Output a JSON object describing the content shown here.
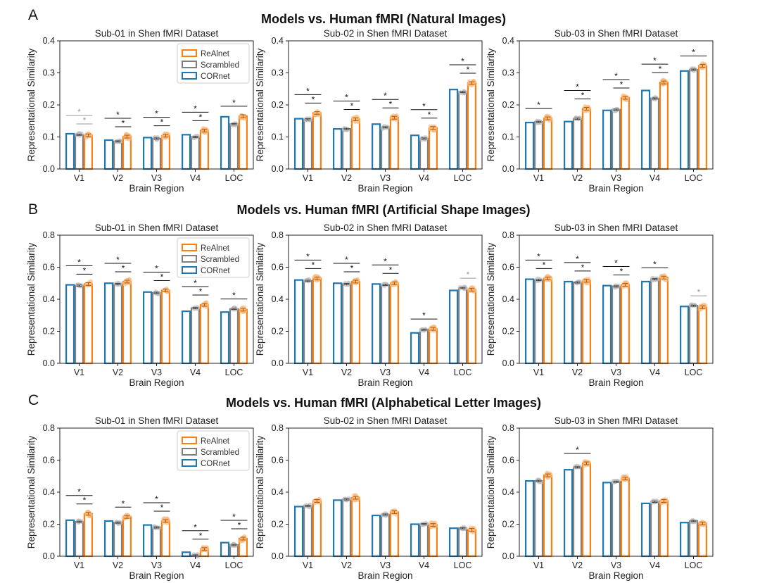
{
  "colors": {
    "realnet": "#ff7f0e",
    "scrambled": "#7f7f7f",
    "cornet": "#1f77b4",
    "realnet_dots": "#f7b97c",
    "sig_grey": "#9a9a9a"
  },
  "panel_letters": [
    "A",
    "B",
    "C"
  ],
  "row_titles": [
    "Models vs. Human fMRI (Natural Images)",
    "Models vs. Human fMRI (Artificial Shape Images)",
    "Models vs. Human fMRI (Alphabetical Letter Images)"
  ],
  "legend": [
    "ReAlnet",
    "Scrambled",
    "CORnet"
  ],
  "star_symbol": "*",
  "chart_data": [
    {
      "type": "bar",
      "row": 0,
      "col": 0,
      "title": "Sub-01 in Shen fMRI Dataset",
      "xlabel": "Brain Region",
      "ylabel": "Representational Similarity",
      "categories": [
        "V1",
        "V2",
        "V3",
        "V4",
        "LOC"
      ],
      "ylim": [
        0,
        0.4
      ],
      "yticks": [
        "0.0",
        "0.1",
        "0.2",
        "0.3",
        "0.4"
      ],
      "ystep": 0.1,
      "legend": true,
      "series": [
        {
          "name": "CORnet",
          "values": [
            0.11,
            0.09,
            0.098,
            0.107,
            0.163
          ]
        },
        {
          "name": "Scrambled",
          "values": [
            0.107,
            0.086,
            0.095,
            0.1,
            0.14
          ]
        },
        {
          "name": "ReAlnet",
          "values": [
            0.105,
            0.101,
            0.104,
            0.12,
            0.165
          ]
        }
      ],
      "significance": [
        [
          true,
          true,
          true,
          true,
          true
        ],
        [
          true,
          true,
          true,
          true,
          false
        ]
      ],
      "significance_grey": [
        [
          true,
          false,
          false,
          false,
          false
        ],
        [
          true,
          false,
          false,
          false,
          false
        ]
      ]
    },
    {
      "type": "bar",
      "row": 0,
      "col": 1,
      "title": "Sub-02 in Shen fMRI Dataset",
      "xlabel": "Brain Region",
      "ylabel": "Representational Similarity",
      "categories": [
        "V1",
        "V2",
        "V3",
        "V4",
        "LOC"
      ],
      "ylim": [
        0,
        0.4
      ],
      "yticks": [
        "0.0",
        "0.1",
        "0.2",
        "0.3",
        "0.4"
      ],
      "ystep": 0.1,
      "legend": false,
      "series": [
        {
          "name": "CORnet",
          "values": [
            0.157,
            0.125,
            0.14,
            0.105,
            0.248
          ]
        },
        {
          "name": "Scrambled",
          "values": [
            0.155,
            0.125,
            0.13,
            0.095,
            0.24
          ]
        },
        {
          "name": "ReAlnet",
          "values": [
            0.175,
            0.155,
            0.16,
            0.128,
            0.268
          ]
        }
      ],
      "significance": [
        [
          true,
          true,
          true,
          true,
          true
        ],
        [
          true,
          true,
          true,
          true,
          true
        ]
      ],
      "significance_grey": [
        [
          false,
          false,
          false,
          false,
          false
        ],
        [
          false,
          false,
          false,
          false,
          false
        ]
      ]
    },
    {
      "type": "bar",
      "row": 0,
      "col": 2,
      "title": "Sub-03 in Shen fMRI Dataset",
      "xlabel": "Brain Region",
      "ylabel": "Representational Similarity",
      "categories": [
        "V1",
        "V2",
        "V3",
        "V4",
        "LOC"
      ],
      "ylim": [
        0,
        0.4
      ],
      "yticks": [
        "0.0",
        "0.1",
        "0.2",
        "0.3",
        "0.4"
      ],
      "ystep": 0.1,
      "legend": false,
      "series": [
        {
          "name": "CORnet",
          "values": [
            0.145,
            0.148,
            0.183,
            0.245,
            0.306
          ]
        },
        {
          "name": "Scrambled",
          "values": [
            0.147,
            0.157,
            0.185,
            0.22,
            0.31
          ]
        },
        {
          "name": "ReAlnet",
          "values": [
            0.158,
            0.188,
            0.222,
            0.27,
            0.322
          ]
        }
      ],
      "significance": [
        [
          true,
          true,
          true,
          true,
          true
        ],
        [
          false,
          true,
          true,
          true,
          false
        ]
      ],
      "significance_grey": [
        [
          false,
          false,
          false,
          false,
          false
        ],
        [
          false,
          false,
          false,
          false,
          false
        ]
      ]
    },
    {
      "type": "bar",
      "row": 1,
      "col": 0,
      "title": "Sub-01 in Shen fMRI Dataset",
      "xlabel": "Brain Region",
      "ylabel": "Representational Similarity",
      "categories": [
        "V1",
        "V2",
        "V3",
        "V4",
        "LOC"
      ],
      "ylim": [
        0,
        0.8
      ],
      "yticks": [
        "0.0",
        "0.2",
        "0.4",
        "0.6",
        "0.8"
      ],
      "ystep": 0.2,
      "legend": true,
      "series": [
        {
          "name": "CORnet",
          "values": [
            0.49,
            0.5,
            0.445,
            0.325,
            0.32
          ]
        },
        {
          "name": "Scrambled",
          "values": [
            0.485,
            0.495,
            0.44,
            0.345,
            0.34
          ]
        },
        {
          "name": "ReAlnet",
          "values": [
            0.495,
            0.51,
            0.455,
            0.365,
            0.335
          ]
        }
      ],
      "significance": [
        [
          true,
          true,
          true,
          true,
          true
        ],
        [
          true,
          true,
          true,
          true,
          false
        ]
      ],
      "significance_grey": [
        [
          false,
          false,
          false,
          false,
          false
        ],
        [
          false,
          false,
          false,
          false,
          false
        ]
      ]
    },
    {
      "type": "bar",
      "row": 1,
      "col": 1,
      "title": "Sub-02 in Shen fMRI Dataset",
      "xlabel": "Brain Region",
      "ylabel": "Representational Similarity",
      "categories": [
        "V1",
        "V2",
        "V3",
        "V4",
        "LOC"
      ],
      "ylim": [
        0,
        0.8
      ],
      "yticks": [
        "0.0",
        "0.2",
        "0.4",
        "0.6",
        "0.8"
      ],
      "ystep": 0.2,
      "legend": false,
      "series": [
        {
          "name": "CORnet",
          "values": [
            0.52,
            0.5,
            0.495,
            0.19,
            0.455
          ]
        },
        {
          "name": "Scrambled",
          "values": [
            0.515,
            0.495,
            0.49,
            0.21,
            0.47
          ]
        },
        {
          "name": "ReAlnet",
          "values": [
            0.53,
            0.51,
            0.5,
            0.215,
            0.46
          ]
        }
      ],
      "significance": [
        [
          true,
          true,
          true,
          true,
          false
        ],
        [
          true,
          true,
          true,
          false,
          true
        ]
      ],
      "significance_grey": [
        [
          false,
          false,
          false,
          false,
          false
        ],
        [
          false,
          false,
          false,
          false,
          true
        ]
      ]
    },
    {
      "type": "bar",
      "row": 1,
      "col": 2,
      "title": "Sub-03 in Shen fMRI Dataset",
      "xlabel": "Brain Region",
      "ylabel": "Representational Similarity",
      "categories": [
        "V1",
        "V2",
        "V3",
        "V4",
        "LOC"
      ],
      "ylim": [
        0,
        0.8
      ],
      "yticks": [
        "0.0",
        "0.2",
        "0.4",
        "0.6",
        "0.8"
      ],
      "ystep": 0.2,
      "legend": false,
      "series": [
        {
          "name": "CORnet",
          "values": [
            0.525,
            0.51,
            0.485,
            0.51,
            0.355
          ]
        },
        {
          "name": "Scrambled",
          "values": [
            0.52,
            0.505,
            0.48,
            0.525,
            0.36
          ]
        },
        {
          "name": "ReAlnet",
          "values": [
            0.53,
            0.515,
            0.49,
            0.535,
            0.35
          ]
        }
      ],
      "significance": [
        [
          true,
          true,
          true,
          true,
          false
        ],
        [
          true,
          true,
          true,
          false,
          true
        ]
      ],
      "significance_grey": [
        [
          false,
          false,
          false,
          false,
          false
        ],
        [
          false,
          false,
          false,
          false,
          true
        ]
      ]
    },
    {
      "type": "bar",
      "row": 2,
      "col": 0,
      "title": "Sub-01 in Shen fMRI Dataset",
      "xlabel": "Brain Region",
      "ylabel": "Representational Similarity",
      "categories": [
        "V1",
        "V2",
        "V3",
        "V4",
        "LOC"
      ],
      "ylim": [
        0,
        0.8
      ],
      "yticks": [
        "0.0",
        "0.2",
        "0.4",
        "0.6",
        "0.8"
      ],
      "ystep": 0.2,
      "legend": true,
      "series": [
        {
          "name": "CORnet",
          "values": [
            0.225,
            0.22,
            0.195,
            0.025,
            0.085
          ]
        },
        {
          "name": "Scrambled",
          "values": [
            0.215,
            0.21,
            0.18,
            0.005,
            0.07
          ]
        },
        {
          "name": "ReAlnet",
          "values": [
            0.265,
            0.245,
            0.22,
            0.045,
            0.11
          ]
        }
      ],
      "significance": [
        [
          true,
          false,
          true,
          true,
          true
        ],
        [
          true,
          true,
          true,
          true,
          true
        ]
      ],
      "significance_grey": [
        [
          false,
          false,
          false,
          false,
          false
        ],
        [
          false,
          false,
          false,
          false,
          false
        ]
      ]
    },
    {
      "type": "bar",
      "row": 2,
      "col": 1,
      "title": "Sub-02 in Shen fMRI Dataset",
      "xlabel": "Brain Region",
      "ylabel": "Representational Similarity",
      "categories": [
        "V1",
        "V2",
        "V3",
        "V4",
        "LOC"
      ],
      "ylim": [
        0,
        0.8
      ],
      "yticks": [
        "0.0",
        "0.2",
        "0.4",
        "0.6",
        "0.8"
      ],
      "ystep": 0.2,
      "legend": false,
      "series": [
        {
          "name": "CORnet",
          "values": [
            0.31,
            0.35,
            0.255,
            0.2,
            0.175
          ]
        },
        {
          "name": "Scrambled",
          "values": [
            0.315,
            0.355,
            0.26,
            0.2,
            0.175
          ]
        },
        {
          "name": "ReAlnet",
          "values": [
            0.345,
            0.365,
            0.275,
            0.195,
            0.165
          ]
        }
      ],
      "significance": [
        [
          false,
          false,
          false,
          false,
          false
        ],
        [
          false,
          false,
          false,
          false,
          false
        ]
      ],
      "significance_grey": [
        [
          false,
          false,
          false,
          false,
          false
        ],
        [
          false,
          false,
          false,
          false,
          false
        ]
      ]
    },
    {
      "type": "bar",
      "row": 2,
      "col": 2,
      "title": "Sub-03 in Shen fMRI Dataset",
      "xlabel": "Brain Region",
      "ylabel": "Representational Similarity",
      "categories": [
        "V1",
        "V2",
        "V3",
        "V4",
        "LOC"
      ],
      "ylim": [
        0,
        0.8
      ],
      "yticks": [
        "0.0",
        "0.2",
        "0.4",
        "0.6",
        "0.8"
      ],
      "ystep": 0.2,
      "legend": false,
      "series": [
        {
          "name": "CORnet",
          "values": [
            0.47,
            0.54,
            0.46,
            0.33,
            0.21
          ]
        },
        {
          "name": "Scrambled",
          "values": [
            0.47,
            0.555,
            0.465,
            0.34,
            0.22
          ]
        },
        {
          "name": "ReAlnet",
          "values": [
            0.505,
            0.58,
            0.485,
            0.345,
            0.205
          ]
        }
      ],
      "significance": [
        [
          false,
          true,
          false,
          false,
          false
        ],
        [
          false,
          false,
          false,
          false,
          false
        ]
      ],
      "significance_grey": [
        [
          false,
          false,
          false,
          false,
          false
        ],
        [
          false,
          false,
          false,
          false,
          false
        ]
      ]
    }
  ]
}
